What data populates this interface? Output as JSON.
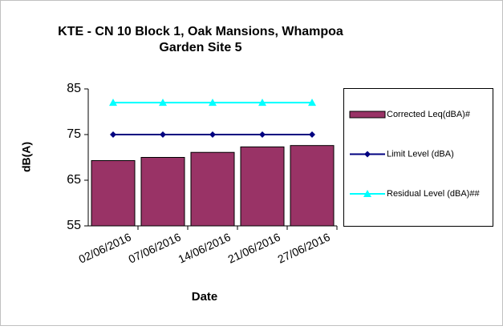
{
  "chart_data": {
    "type": "bar",
    "title": [
      "KTE - CN 10 Block 1, Oak Mansions, Whampoa",
      "Garden Site 5"
    ],
    "x_label": "Date",
    "y_label": "dB(A)",
    "categories": [
      "02/06/2016",
      "07/06/2016",
      "14/06/2016",
      "21/06/2016",
      "27/06/2016"
    ],
    "series": [
      {
        "name": "Corrected Leq(dBA)#",
        "type": "bar",
        "color": "#993366",
        "values": [
          69.3,
          70.0,
          71.1,
          72.3,
          72.6
        ]
      },
      {
        "name": "Limit Level (dBA)",
        "type": "line",
        "marker": "diamond",
        "color": "#000080",
        "values": [
          75,
          75,
          75,
          75,
          75
        ]
      },
      {
        "name": "Residual Level (dBA)##",
        "type": "line",
        "marker": "triangle",
        "color": "#00ffff",
        "values": [
          82,
          82,
          82,
          82,
          82
        ]
      }
    ],
    "ylim": [
      55,
      85
    ],
    "yticks": [
      55,
      65,
      75,
      85
    ],
    "grid": false,
    "legend": "right"
  }
}
